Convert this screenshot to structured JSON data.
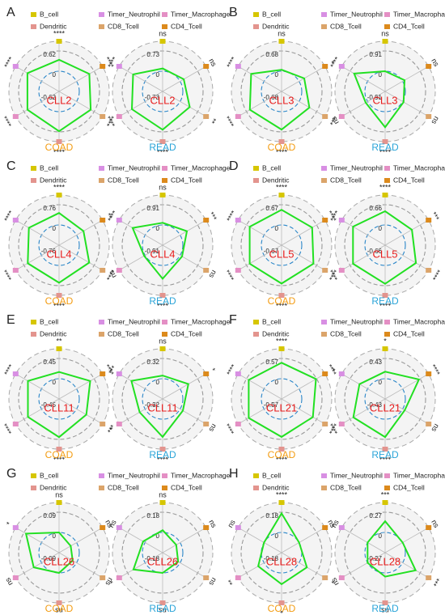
{
  "chart_data": [
    {
      "type": "radar",
      "panel": "A",
      "title": "CLL2",
      "categories": [
        "B_cell",
        "Timer_Neutrophil",
        "Timer_Macrophage",
        "Dendritic",
        "CD8_Tcell",
        "CD4_Tcell"
      ],
      "category_colors": [
        "#d6c600",
        "#d88fe3",
        "#e48fc4",
        "#e3948e",
        "#dba46a",
        "#dc8a1c"
      ],
      "charts": [
        {
          "name": "COAD",
          "color": "#f39c12",
          "rlim": [
            -0.62,
            0.62
          ],
          "rticks": [
            -0.62,
            0,
            0.62
          ],
          "values": [
            0.35,
            0.5,
            0.5,
            0.6,
            0.5,
            0.45
          ],
          "significance": [
            "****",
            "****",
            "****",
            "****",
            "****",
            "****"
          ]
        },
        {
          "name": "READ",
          "color": "#2aa4d8",
          "rlim": [
            -0.73,
            0.73
          ],
          "rticks": [
            -0.73,
            0,
            0.73
          ],
          "values": [
            0.1,
            0.5,
            0.55,
            0.65,
            0.4,
            0.15
          ],
          "significance": [
            "ns",
            "****",
            "****",
            "****",
            "**",
            "ns"
          ]
        }
      ]
    },
    {
      "type": "radar",
      "panel": "B",
      "title": "CLL3",
      "categories": [
        "B_cell",
        "Timer_Neutrophil",
        "Timer_Macrophage",
        "Dendritic",
        "CD8_Tcell",
        "CD4_Tcell"
      ],
      "category_colors": [
        "#d6c600",
        "#d88fe3",
        "#e48fc4",
        "#e3948e",
        "#dba46a",
        "#dc8a1c"
      ],
      "charts": [
        {
          "name": "COAD",
          "color": "#f39c12",
          "rlim": [
            -0.68,
            0.68
          ],
          "rticks": [
            -0.68,
            0,
            0.68
          ],
          "values": [
            0.05,
            0.5,
            0.55,
            0.6,
            0.4,
            0.2
          ],
          "significance": [
            "ns",
            "****",
            "****",
            "****",
            "***",
            "*"
          ]
        },
        {
          "name": "READ",
          "color": "#2aa4d8",
          "rlim": [
            -0.91,
            0.91
          ],
          "rticks": [
            -0.91,
            0,
            0.91
          ],
          "values": [
            0.0,
            0.7,
            0.1,
            0.7,
            0.05,
            0.1
          ],
          "significance": [
            "ns",
            "****",
            "ns",
            "****",
            "ns",
            "ns"
          ]
        }
      ]
    },
    {
      "type": "radar",
      "panel": "C",
      "title": "CLL4",
      "categories": [
        "B_cell",
        "Timer_Neutrophil",
        "Timer_Macrophage",
        "Dendritic",
        "CD8_Tcell",
        "CD4_Tcell"
      ],
      "category_colors": [
        "#d6c600",
        "#d88fe3",
        "#e48fc4",
        "#e3948e",
        "#dba46a",
        "#dc8a1c"
      ],
      "charts": [
        {
          "name": "COAD",
          "color": "#f39c12",
          "rlim": [
            -0.76,
            0.76
          ],
          "rticks": [
            -0.76,
            0,
            0.76
          ],
          "values": [
            0.45,
            0.55,
            0.6,
            0.65,
            0.55,
            0.3
          ],
          "significance": [
            "****",
            "****",
            "****",
            "****",
            "****",
            "**"
          ]
        },
        {
          "name": "READ",
          "color": "#2aa4d8",
          "rlim": [
            -0.91,
            0.91
          ],
          "rticks": [
            -0.91,
            0,
            0.91
          ],
          "values": [
            0.1,
            0.65,
            0.05,
            0.6,
            0.1,
            0.35
          ],
          "significance": [
            "ns",
            "****",
            "ns",
            "****",
            "ns",
            "***"
          ]
        }
      ]
    },
    {
      "type": "radar",
      "panel": "D",
      "title": "CLL5",
      "categories": [
        "B_cell",
        "Timer_Neutrophil",
        "Timer_Macrophage",
        "Dendritic",
        "CD8_Tcell",
        "CD4_Tcell"
      ],
      "category_colors": [
        "#d6c600",
        "#d88fe3",
        "#e48fc4",
        "#e3948e",
        "#dba46a",
        "#dc8a1c"
      ],
      "charts": [
        {
          "name": "COAD",
          "color": "#f39c12",
          "rlim": [
            -0.67,
            0.67
          ],
          "rticks": [
            -0.67,
            0,
            0.67
          ],
          "values": [
            0.5,
            0.55,
            0.55,
            0.6,
            0.55,
            0.5
          ],
          "significance": [
            "****",
            "****",
            "****",
            "****",
            "****",
            "****"
          ]
        },
        {
          "name": "READ",
          "color": "#2aa4d8",
          "rlim": [
            -0.66,
            0.66
          ],
          "rticks": [
            -0.66,
            0,
            0.66
          ],
          "values": [
            0.45,
            0.55,
            0.55,
            0.6,
            0.5,
            0.35
          ],
          "significance": [
            "****",
            "****",
            "****",
            "****",
            "****",
            "***"
          ]
        }
      ]
    },
    {
      "type": "radar",
      "panel": "E",
      "title": "CLL11",
      "categories": [
        "B_cell",
        "Timer_Neutrophil",
        "Timer_Macrophage",
        "Dendritic",
        "CD8_Tcell",
        "CD4_Tcell"
      ],
      "category_colors": [
        "#d6c600",
        "#d88fe3",
        "#e48fc4",
        "#e3948e",
        "#dba46a",
        "#dc8a1c"
      ],
      "charts": [
        {
          "name": "COAD",
          "color": "#f39c12",
          "rlim": [
            -0.45,
            0.45
          ],
          "rticks": [
            -0.45,
            0,
            0.45
          ],
          "values": [
            0.15,
            0.35,
            0.35,
            0.4,
            0.25,
            0.35
          ],
          "significance": [
            "**",
            "****",
            "****",
            "****",
            "***",
            "****"
          ]
        },
        {
          "name": "READ",
          "color": "#2aa4d8",
          "rlim": [
            -0.32,
            0.32
          ],
          "rticks": [
            -0.32,
            0,
            0.32
          ],
          "values": [
            0.05,
            0.25,
            0.1,
            0.28,
            0.05,
            0.15
          ],
          "significance": [
            "ns",
            "***",
            "*",
            "****",
            "ns",
            "*"
          ]
        }
      ]
    },
    {
      "type": "radar",
      "panel": "F",
      "title": "CLL21",
      "categories": [
        "B_cell",
        "Timer_Neutrophil",
        "Timer_Macrophage",
        "Dendritic",
        "CD8_Tcell",
        "CD4_Tcell"
      ],
      "category_colors": [
        "#d6c600",
        "#d88fe3",
        "#e48fc4",
        "#e3948e",
        "#dba46a",
        "#dc8a1c"
      ],
      "charts": [
        {
          "name": "COAD",
          "color": "#f39c12",
          "rlim": [
            -0.57,
            0.57
          ],
          "rticks": [
            -0.57,
            0,
            0.57
          ],
          "values": [
            0.45,
            0.5,
            0.5,
            0.5,
            0.45,
            0.55
          ],
          "significance": [
            "****",
            "****",
            "****",
            "****",
            "****",
            "****"
          ]
        },
        {
          "name": "READ",
          "color": "#2aa4d8",
          "rlim": [
            -0.43,
            0.43
          ],
          "rticks": [
            -0.43,
            0,
            0.43
          ],
          "values": [
            0.15,
            0.2,
            0.35,
            0.38,
            0.05,
            0.4
          ],
          "significance": [
            "*",
            "*",
            "****",
            "****",
            "ns",
            "****"
          ]
        }
      ]
    },
    {
      "type": "radar",
      "panel": "G",
      "title": "CLL26",
      "categories": [
        "B_cell",
        "Timer_Neutrophil",
        "Timer_Macrophage",
        "Dendritic",
        "CD8_Tcell",
        "CD4_Tcell"
      ],
      "category_colors": [
        "#d6c600",
        "#d88fe3",
        "#e48fc4",
        "#e3948e",
        "#dba46a",
        "#dc8a1c"
      ],
      "charts": [
        {
          "name": "COAD",
          "color": "#f39c12",
          "rlim": [
            -0.09,
            0.09
          ],
          "rticks": [
            -0.09,
            0,
            0.09
          ],
          "values": [
            0.0,
            0.08,
            0.04,
            0.0,
            -0.02,
            -0.03
          ],
          "significance": [
            "ns",
            "*",
            "ns",
            "ns",
            "ns",
            "ns"
          ]
        },
        {
          "name": "READ",
          "color": "#2aa4d8",
          "rlim": [
            -0.18,
            0.18
          ],
          "rticks": [
            -0.18,
            0,
            0.18
          ],
          "values": [
            0.02,
            0.02,
            0.12,
            0.0,
            -0.02,
            -0.04
          ],
          "significance": [
            "ns",
            "ns",
            "*",
            "ns",
            "ns",
            "ns"
          ]
        }
      ]
    },
    {
      "type": "radar",
      "panel": "H",
      "title": "CLL28",
      "categories": [
        "B_cell",
        "Timer_Neutrophil",
        "Timer_Macrophage",
        "Dendritic",
        "CD8_Tcell",
        "CD4_Tcell"
      ],
      "category_colors": [
        "#d6c600",
        "#d88fe3",
        "#e48fc4",
        "#e3948e",
        "#dba46a",
        "#dc8a1c"
      ],
      "charts": [
        {
          "name": "COAD",
          "color": "#f39c12",
          "rlim": [
            -0.18,
            0.18
          ],
          "rticks": [
            -0.18,
            0,
            0.18
          ],
          "values": [
            0.17,
            0.0,
            0.06,
            0.1,
            0.08,
            0.0
          ],
          "significance": [
            "****",
            "ns",
            "**",
            "*",
            "*",
            "ns"
          ]
        },
        {
          "name": "READ",
          "color": "#2aa4d8",
          "rlim": [
            -0.27,
            0.27
          ],
          "rticks": [
            -0.27,
            0,
            0.27
          ],
          "values": [
            0.15,
            0.0,
            0.0,
            0.05,
            0.2,
            0.0
          ],
          "significance": [
            "***",
            "ns",
            "ns",
            "ns",
            "***",
            "ns"
          ]
        }
      ]
    }
  ]
}
